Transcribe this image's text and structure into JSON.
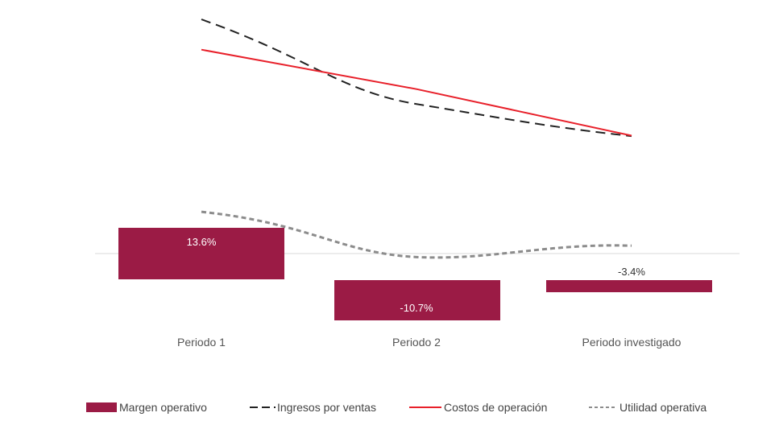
{
  "chart_data": {
    "type": "bar",
    "categories": [
      "Periodo 1",
      "Periodo 2",
      "Periodo investigado"
    ],
    "bars": {
      "name": "Margen operativo",
      "values": [
        13.6,
        -10.7,
        -3.4
      ],
      "labels": [
        "13.6%",
        "-10.7%",
        "-3.4%"
      ],
      "color": "#9b1b45",
      "label_inside": [
        true,
        true,
        false
      ]
    },
    "lines": [
      {
        "name": "Ingresos por ventas",
        "values": [
          100,
          62,
          47.6
        ],
        "color": "#222222",
        "style": "dashed"
      },
      {
        "name": "Costos de operación",
        "values": [
          86.4,
          68.7,
          47.8
        ],
        "color": "#e8202a",
        "style": "solid"
      },
      {
        "name": "Utilidad operativa",
        "values": [
          13.6,
          -6.7,
          -1.6
        ],
        "color": "#8c8c8c",
        "style": "dotted"
      }
    ],
    "line_ylim": [
      -12,
      104
    ],
    "bar_ylim": [
      -15,
      20
    ],
    "legend_position": "bottom",
    "grid": false
  }
}
